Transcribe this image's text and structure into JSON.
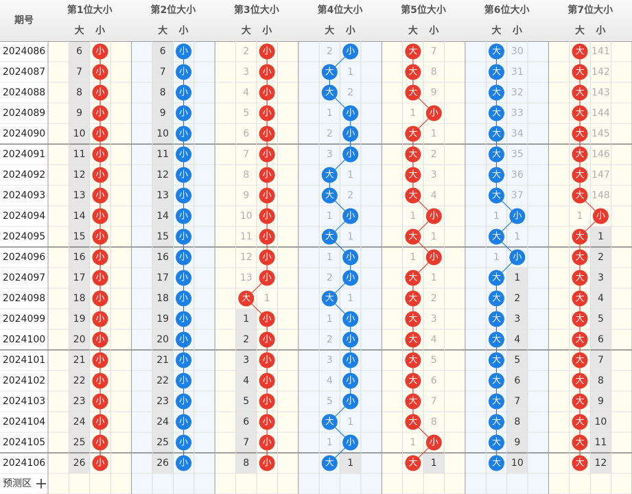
{
  "header": {
    "period": "期号",
    "positions": [
      "第1位大小",
      "第2位大小",
      "第3位大小",
      "第4位大小",
      "第5位大小",
      "第6位大小",
      "第7位大小"
    ],
    "subheaders": [
      "大",
      "小"
    ]
  },
  "ball_colors": [
    "#ea3a2e",
    "#1c7fe6"
  ],
  "rows": [
    {
      "period": "2024086",
      "cells": [
        [
          "小",
          6
        ],
        [
          "小",
          6
        ],
        [
          "小",
          2
        ],
        [
          "小",
          2
        ],
        [
          "大",
          7
        ],
        [
          "大",
          30
        ],
        [
          "大",
          141
        ]
      ]
    },
    {
      "period": "2024087",
      "cells": [
        [
          "小",
          7
        ],
        [
          "小",
          7
        ],
        [
          "小",
          3
        ],
        [
          "大",
          1
        ],
        [
          "大",
          8
        ],
        [
          "大",
          31
        ],
        [
          "大",
          142
        ]
      ]
    },
    {
      "period": "2024088",
      "cells": [
        [
          "小",
          8
        ],
        [
          "小",
          8
        ],
        [
          "小",
          4
        ],
        [
          "大",
          2
        ],
        [
          "大",
          9
        ],
        [
          "大",
          32
        ],
        [
          "大",
          143
        ]
      ]
    },
    {
      "period": "2024089",
      "cells": [
        [
          "小",
          9
        ],
        [
          "小",
          9
        ],
        [
          "小",
          5
        ],
        [
          "小",
          1
        ],
        [
          "小",
          1
        ],
        [
          "大",
          33
        ],
        [
          "大",
          144
        ]
      ]
    },
    {
      "period": "2024090",
      "cells": [
        [
          "小",
          10
        ],
        [
          "小",
          10
        ],
        [
          "小",
          6
        ],
        [
          "小",
          2
        ],
        [
          "大",
          1
        ],
        [
          "大",
          34
        ],
        [
          "大",
          145
        ]
      ]
    },
    {
      "period": "2024091",
      "cells": [
        [
          "小",
          11
        ],
        [
          "小",
          11
        ],
        [
          "小",
          7
        ],
        [
          "小",
          3
        ],
        [
          "大",
          2
        ],
        [
          "大",
          35
        ],
        [
          "大",
          146
        ]
      ]
    },
    {
      "period": "2024092",
      "cells": [
        [
          "小",
          12
        ],
        [
          "小",
          12
        ],
        [
          "小",
          8
        ],
        [
          "大",
          1
        ],
        [
          "大",
          3
        ],
        [
          "大",
          36
        ],
        [
          "大",
          147
        ]
      ]
    },
    {
      "period": "2024093",
      "cells": [
        [
          "小",
          13
        ],
        [
          "小",
          13
        ],
        [
          "小",
          9
        ],
        [
          "大",
          2
        ],
        [
          "大",
          4
        ],
        [
          "大",
          37
        ],
        [
          "大",
          148
        ]
      ]
    },
    {
      "period": "2024094",
      "cells": [
        [
          "小",
          14
        ],
        [
          "小",
          14
        ],
        [
          "小",
          10
        ],
        [
          "小",
          1
        ],
        [
          "小",
          1
        ],
        [
          "小",
          1
        ],
        [
          "小",
          1
        ]
      ]
    },
    {
      "period": "2024095",
      "cells": [
        [
          "小",
          15
        ],
        [
          "小",
          15
        ],
        [
          "小",
          11
        ],
        [
          "大",
          1
        ],
        [
          "大",
          1
        ],
        [
          "大",
          1
        ],
        [
          "大",
          1
        ]
      ]
    },
    {
      "period": "2024096",
      "cells": [
        [
          "小",
          16
        ],
        [
          "小",
          16
        ],
        [
          "小",
          12
        ],
        [
          "小",
          1
        ],
        [
          "小",
          1
        ],
        [
          "小",
          1
        ],
        [
          "大",
          2
        ]
      ]
    },
    {
      "period": "2024097",
      "cells": [
        [
          "小",
          17
        ],
        [
          "小",
          17
        ],
        [
          "小",
          13
        ],
        [
          "小",
          2
        ],
        [
          "大",
          1
        ],
        [
          "大",
          1
        ],
        [
          "大",
          3
        ]
      ]
    },
    {
      "period": "2024098",
      "cells": [
        [
          "小",
          18
        ],
        [
          "小",
          18
        ],
        [
          "大",
          1
        ],
        [
          "大",
          1
        ],
        [
          "大",
          2
        ],
        [
          "大",
          2
        ],
        [
          "大",
          4
        ]
      ]
    },
    {
      "period": "2024099",
      "cells": [
        [
          "小",
          19
        ],
        [
          "小",
          19
        ],
        [
          "小",
          1
        ],
        [
          "小",
          1
        ],
        [
          "大",
          3
        ],
        [
          "大",
          3
        ],
        [
          "大",
          5
        ]
      ]
    },
    {
      "period": "2024100",
      "cells": [
        [
          "小",
          20
        ],
        [
          "小",
          20
        ],
        [
          "小",
          2
        ],
        [
          "小",
          2
        ],
        [
          "大",
          4
        ],
        [
          "大",
          4
        ],
        [
          "大",
          6
        ]
      ]
    },
    {
      "period": "2024101",
      "cells": [
        [
          "小",
          21
        ],
        [
          "小",
          21
        ],
        [
          "小",
          3
        ],
        [
          "小",
          3
        ],
        [
          "大",
          5
        ],
        [
          "大",
          5
        ],
        [
          "大",
          7
        ]
      ]
    },
    {
      "period": "2024102",
      "cells": [
        [
          "小",
          22
        ],
        [
          "小",
          22
        ],
        [
          "小",
          4
        ],
        [
          "小",
          4
        ],
        [
          "大",
          6
        ],
        [
          "大",
          6
        ],
        [
          "大",
          8
        ]
      ]
    },
    {
      "period": "2024103",
      "cells": [
        [
          "小",
          23
        ],
        [
          "小",
          23
        ],
        [
          "小",
          5
        ],
        [
          "小",
          5
        ],
        [
          "大",
          7
        ],
        [
          "大",
          7
        ],
        [
          "大",
          9
        ]
      ]
    },
    {
      "period": "2024104",
      "cells": [
        [
          "小",
          24
        ],
        [
          "小",
          24
        ],
        [
          "小",
          6
        ],
        [
          "大",
          1
        ],
        [
          "大",
          8
        ],
        [
          "大",
          8
        ],
        [
          "大",
          10
        ]
      ]
    },
    {
      "period": "2024105",
      "cells": [
        [
          "小",
          25
        ],
        [
          "小",
          25
        ],
        [
          "小",
          7
        ],
        [
          "小",
          1
        ],
        [
          "小",
          1
        ],
        [
          "大",
          9
        ],
        [
          "大",
          11
        ]
      ]
    },
    {
      "period": "2024106",
      "cells": [
        [
          "小",
          26
        ],
        [
          "小",
          26
        ],
        [
          "小",
          8
        ],
        [
          "大",
          1
        ],
        [
          "大",
          1
        ],
        [
          "大",
          10
        ],
        [
          "大",
          12
        ]
      ]
    }
  ],
  "footer": {
    "label": "预测区"
  }
}
